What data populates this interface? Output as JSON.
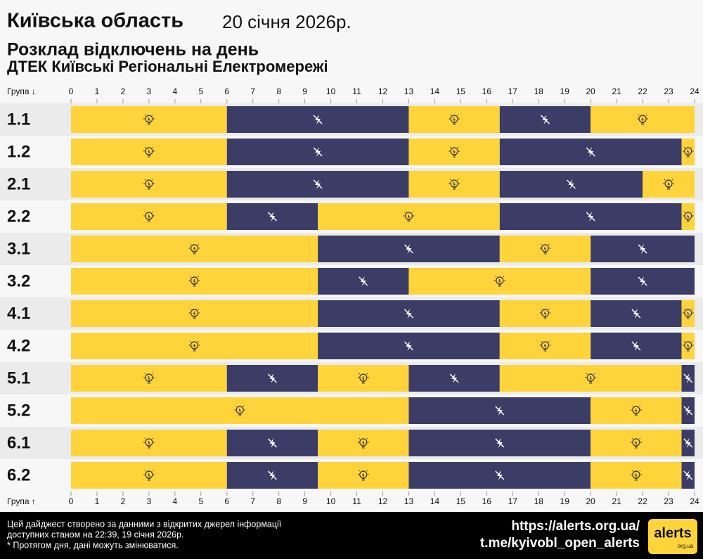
{
  "chart_data": {
    "type": "timeline",
    "title": "Київська область",
    "date": "20 січня 2026р.",
    "subtitle": "Розклад відключень на день",
    "provider": "ДТЕК Київські Регіональні Електромережі",
    "xlabel_top": "Група ↓",
    "xlabel_bottom": "Група ↑",
    "xlim": [
      0,
      24
    ],
    "xticks": [
      0,
      1,
      2,
      3,
      4,
      5,
      6,
      7,
      8,
      9,
      10,
      11,
      12,
      13,
      14,
      15,
      16,
      17,
      18,
      19,
      20,
      21,
      22,
      23,
      24
    ],
    "rows": [
      {
        "name": "1.1",
        "segments": [
          {
            "start": 0,
            "end": 6,
            "color": "#ffd43b"
          },
          {
            "start": 6,
            "end": 13,
            "color": "#3b3d66"
          },
          {
            "start": 13,
            "end": 16.5,
            "color": "#ffd43b"
          },
          {
            "start": 16.5,
            "end": 20,
            "color": "#3b3d66"
          },
          {
            "start": 20,
            "end": 24,
            "color": "#ffd43b"
          }
        ]
      },
      {
        "name": "1.2",
        "segments": [
          {
            "start": 0,
            "end": 6,
            "color": "#ffd43b"
          },
          {
            "start": 6,
            "end": 13,
            "color": "#3b3d66"
          },
          {
            "start": 13,
            "end": 16.5,
            "color": "#ffd43b"
          },
          {
            "start": 16.5,
            "end": 23.5,
            "color": "#3b3d66"
          },
          {
            "start": 23.5,
            "end": 24,
            "color": "#ffd43b"
          }
        ]
      },
      {
        "name": "2.1",
        "segments": [
          {
            "start": 0,
            "end": 6,
            "color": "#ffd43b"
          },
          {
            "start": 6,
            "end": 13,
            "color": "#3b3d66"
          },
          {
            "start": 13,
            "end": 16.5,
            "color": "#ffd43b"
          },
          {
            "start": 16.5,
            "end": 22,
            "color": "#3b3d66"
          },
          {
            "start": 22,
            "end": 24,
            "color": "#ffd43b"
          }
        ]
      },
      {
        "name": "2.2",
        "segments": [
          {
            "start": 0,
            "end": 6,
            "color": "#ffd43b"
          },
          {
            "start": 6,
            "end": 9.5,
            "color": "#3b3d66"
          },
          {
            "start": 9.5,
            "end": 16.5,
            "color": "#ffd43b"
          },
          {
            "start": 16.5,
            "end": 23.5,
            "color": "#3b3d66"
          },
          {
            "start": 23.5,
            "end": 24,
            "color": "#ffd43b"
          }
        ]
      },
      {
        "name": "3.1",
        "segments": [
          {
            "start": 0,
            "end": 9.5,
            "color": "#ffd43b"
          },
          {
            "start": 9.5,
            "end": 16.5,
            "color": "#3b3d66"
          },
          {
            "start": 16.5,
            "end": 20,
            "color": "#ffd43b"
          },
          {
            "start": 20,
            "end": 24,
            "color": "#3b3d66"
          }
        ]
      },
      {
        "name": "3.2",
        "segments": [
          {
            "start": 0,
            "end": 9.5,
            "color": "#ffd43b"
          },
          {
            "start": 9.5,
            "end": 13,
            "color": "#3b3d66"
          },
          {
            "start": 13,
            "end": 20,
            "color": "#ffd43b"
          },
          {
            "start": 20,
            "end": 24,
            "color": "#3b3d66"
          }
        ]
      },
      {
        "name": "4.1",
        "segments": [
          {
            "start": 0,
            "end": 9.5,
            "color": "#ffd43b"
          },
          {
            "start": 9.5,
            "end": 16.5,
            "color": "#3b3d66"
          },
          {
            "start": 16.5,
            "end": 20,
            "color": "#ffd43b"
          },
          {
            "start": 20,
            "end": 23.5,
            "color": "#3b3d66"
          },
          {
            "start": 23.5,
            "end": 24,
            "color": "#ffd43b"
          }
        ]
      },
      {
        "name": "4.2",
        "segments": [
          {
            "start": 0,
            "end": 9.5,
            "color": "#ffd43b"
          },
          {
            "start": 9.5,
            "end": 16.5,
            "color": "#3b3d66"
          },
          {
            "start": 16.5,
            "end": 20,
            "color": "#ffd43b"
          },
          {
            "start": 20,
            "end": 23.5,
            "color": "#3b3d66"
          },
          {
            "start": 23.5,
            "end": 24,
            "color": "#ffd43b"
          }
        ]
      },
      {
        "name": "5.1",
        "segments": [
          {
            "start": 0,
            "end": 6,
            "color": "#ffd43b"
          },
          {
            "start": 6,
            "end": 9.5,
            "color": "#3b3d66"
          },
          {
            "start": 9.5,
            "end": 13,
            "color": "#ffd43b"
          },
          {
            "start": 13,
            "end": 16.5,
            "color": "#3b3d66"
          },
          {
            "start": 16.5,
            "end": 23.5,
            "color": "#ffd43b"
          },
          {
            "start": 23.5,
            "end": 24,
            "color": "#3b3d66"
          }
        ]
      },
      {
        "name": "5.2",
        "segments": [
          {
            "start": 0,
            "end": 13,
            "color": "#ffd43b"
          },
          {
            "start": 13,
            "end": 20,
            "color": "#3b3d66"
          },
          {
            "start": 20,
            "end": 23.5,
            "color": "#ffd43b"
          },
          {
            "start": 23.5,
            "end": 24,
            "color": "#3b3d66"
          }
        ]
      },
      {
        "name": "6.1",
        "segments": [
          {
            "start": 0,
            "end": 6,
            "color": "#ffd43b"
          },
          {
            "start": 6,
            "end": 9.5,
            "color": "#3b3d66"
          },
          {
            "start": 9.5,
            "end": 13,
            "color": "#ffd43b"
          },
          {
            "start": 13,
            "end": 20,
            "color": "#3b3d66"
          },
          {
            "start": 20,
            "end": 23.5,
            "color": "#ffd43b"
          },
          {
            "start": 23.5,
            "end": 24,
            "color": "#3b3d66"
          }
        ]
      },
      {
        "name": "6.2",
        "segments": [
          {
            "start": 0,
            "end": 6,
            "color": "#ffd43b"
          },
          {
            "start": 6,
            "end": 9.5,
            "color": "#3b3d66"
          },
          {
            "start": 9.5,
            "end": 13,
            "color": "#ffd43b"
          },
          {
            "start": 13,
            "end": 20,
            "color": "#3b3d66"
          },
          {
            "start": 20,
            "end": 23.5,
            "color": "#ffd43b"
          },
          {
            "start": 23.5,
            "end": 24,
            "color": "#3b3d66"
          }
        ]
      }
    ]
  },
  "footer": {
    "lines": [
      "Цей дайджест створено за данними з відкритих джерел інформації",
      "доступних станом на 22:39, 19 січня 2026р.",
      "* Протягом дня, дані можуть змінюватися."
    ],
    "urls": [
      "https://alerts.org.ua/",
      "t.me/kyivobl_open_alerts"
    ],
    "logo": {
      "text": "alerts",
      "sub": "org.ua"
    }
  }
}
